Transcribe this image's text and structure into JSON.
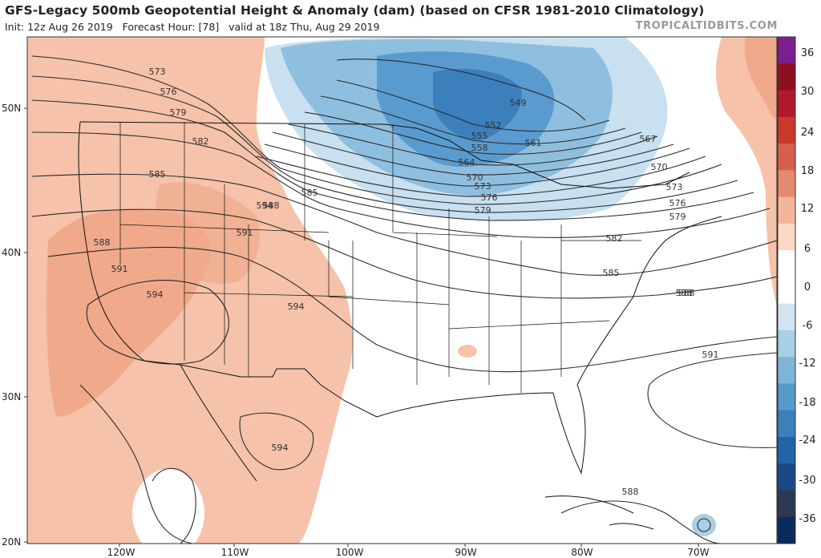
{
  "header": {
    "title": "GFS-Legacy 500mb Geopotential Height & Anomaly (dam) (based on CFSR 1981-2010 Climatology)",
    "subtitle_init_label": "Init: 12z Aug 26 2019",
    "subtitle_forecast_label": "Forecast Hour: [78]",
    "subtitle_valid_label": "valid at 18z Thu, Aug 29 2019",
    "watermark": "TROPICALTIDBITS.COM"
  },
  "map": {
    "type": "weather-map",
    "lat_labels": [
      "50N",
      "40N",
      "30N",
      "20N"
    ],
    "lon_labels": [
      "120W",
      "110W",
      "100W",
      "90W",
      "80W",
      "70W"
    ],
    "contour_labels": [
      {
        "text": "573",
        "line": "573"
      },
      {
        "text": "576",
        "line": "576"
      },
      {
        "text": "579",
        "line": "579"
      },
      {
        "text": "582",
        "line": "582"
      },
      {
        "text": "585",
        "line": "585"
      },
      {
        "text": "588",
        "line": "588"
      },
      {
        "text": "591",
        "line": "591"
      },
      {
        "text": "594",
        "line": "594"
      },
      {
        "text": "588",
        "line": "588"
      },
      {
        "text": "591",
        "line": "591"
      },
      {
        "text": "594",
        "line": "594"
      },
      {
        "text": "585",
        "line": "585"
      },
      {
        "text": "588",
        "line": "588"
      },
      {
        "text": "594",
        "line": "594"
      },
      {
        "text": "594",
        "line": "594"
      },
      {
        "text": "549",
        "line": "549"
      },
      {
        "text": "552",
        "line": "552"
      },
      {
        "text": "555",
        "line": "555"
      },
      {
        "text": "558",
        "line": "558"
      },
      {
        "text": "561",
        "line": "561"
      },
      {
        "text": "564",
        "line": "564"
      },
      {
        "text": "567",
        "line": "567"
      },
      {
        "text": "570",
        "line": "570"
      },
      {
        "text": "570",
        "line": "570"
      },
      {
        "text": "573",
        "line": "573"
      },
      {
        "text": "573",
        "line": "573"
      },
      {
        "text": "576",
        "line": "576"
      },
      {
        "text": "576",
        "line": "576"
      },
      {
        "text": "579",
        "line": "579"
      },
      {
        "text": "579",
        "line": "579"
      },
      {
        "text": "582",
        "line": "582"
      },
      {
        "text": "585",
        "line": "585"
      },
      {
        "text": "588",
        "line": "588"
      },
      {
        "text": "591",
        "line": "591"
      },
      {
        "text": "588",
        "line": "588"
      }
    ],
    "colorbar": {
      "labels": [
        "36",
        "30",
        "24",
        "18",
        "12",
        "6",
        "0",
        "-6",
        "-12",
        "-18",
        "-24",
        "-30",
        "-36"
      ],
      "colors": [
        "#7b1f8f",
        "#8e0f22",
        "#b2182b",
        "#c9382d",
        "#d6604d",
        "#e48a6e",
        "#f4b49a",
        "#fbd7c6",
        "#ffffff",
        "#ffffff",
        "#d1e5f0",
        "#a9cfe4",
        "#7fb5d9",
        "#5799c9",
        "#3b7fbd",
        "#2164a8",
        "#1a4a86",
        "#2b3a52",
        "#0b2a5c"
      ]
    },
    "colors": {
      "warm_anomaly": "#f6c2aa",
      "warm_anomaly_strong": "#f0a98b",
      "cold_anomaly_light": "#c8e0ef",
      "cold_anomaly_mid": "#8fbfdf",
      "cold_anomaly_strong": "#5a9bcf",
      "contour": "#2a2a2a",
      "borders": "#111111"
    }
  }
}
